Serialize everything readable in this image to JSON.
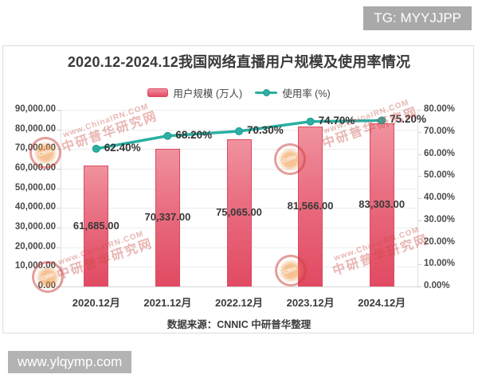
{
  "overlays": {
    "tg_badge": "TG: MYYJJPP",
    "site_badge": "www.ylqymp.com"
  },
  "watermark": {
    "line1": "www.ChinaIRN.COM",
    "line2": "中研普华研究网",
    "stamp_text": "CIRN"
  },
  "chart": {
    "title": "2020.12-2024.12我国网络直播用户规模及使用率情况",
    "source": "数据来源：CNNIC 中研普华整理"
  },
  "chart_data": {
    "type": "bar+line",
    "title": "2020.12-2024.12我国网络直播用户规模及使用率情况",
    "categories": [
      "2020.12月",
      "2021.12月",
      "2022.12月",
      "2023.12月",
      "2024.12月"
    ],
    "series": [
      {
        "name": "用户规模 (万人)",
        "type": "bar",
        "axis": "left",
        "values": [
          61685,
          70337,
          75065,
          81566,
          83303
        ],
        "labels": [
          "61,685.00",
          "70,337.00",
          "75,065.00",
          "81,566.00",
          "83,303.00"
        ]
      },
      {
        "name": "使用率 (%)",
        "type": "line",
        "axis": "right",
        "values": [
          62.4,
          68.2,
          70.3,
          74.7,
          75.2
        ],
        "labels": [
          "62.40%",
          "68.20%",
          "70.30%",
          "74.70%",
          "75.20%"
        ]
      }
    ],
    "left_axis": {
      "min": 0,
      "max": 90000,
      "step": 10000,
      "tick_labels": [
        "0.00",
        "10,000.00",
        "20,000.00",
        "30,000.00",
        "40,000.00",
        "50,000.00",
        "60,000.00",
        "70,000.00",
        "80,000.00",
        "90,000.00"
      ]
    },
    "right_axis": {
      "min": 0,
      "max": 80,
      "step": 10,
      "tick_labels": [
        "0.00%",
        "10.00%",
        "20.00%",
        "30.00%",
        "40.00%",
        "50.00%",
        "60.00%",
        "70.00%",
        "80.00%"
      ]
    },
    "legend_position": "top-center",
    "grid": true,
    "colors": {
      "bar_top": "#f0929f",
      "bar_bottom": "#e14a62",
      "bar_border": "#d94b61",
      "line": "#2bafa2",
      "label": "#383838"
    }
  }
}
